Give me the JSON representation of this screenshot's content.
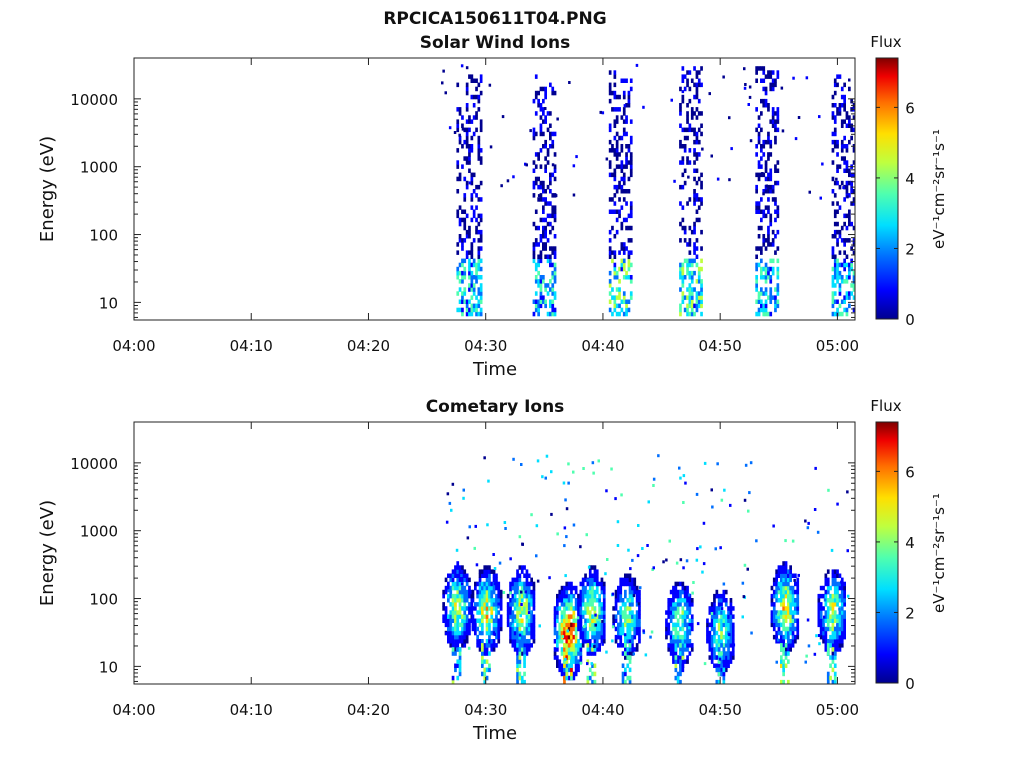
{
  "figure": {
    "title": "RPCICA150611T04.PNG"
  },
  "colormap": [
    "#00008f",
    "#0000ff",
    "#006fff",
    "#00dfff",
    "#4fffaf",
    "#bfff3f",
    "#ffdf00",
    "#ff6f00",
    "#ef0000",
    "#7f0000"
  ],
  "chart_data": [
    {
      "type": "heatmap",
      "title": "Solar Wind Ions",
      "xlabel": "Time",
      "ylabel": "Energy (eV)",
      "x_ticks": [
        "04:00",
        "04:10",
        "04:20",
        "04:30",
        "04:40",
        "04:50",
        "05:00"
      ],
      "x_range_minutes": [
        0,
        61.5
      ],
      "y_scale": "log",
      "y_range": [
        5.5,
        40000
      ],
      "y_ticks": [
        10,
        100,
        1000,
        10000
      ],
      "y_tick_labels": [
        "10",
        "100",
        "1000",
        "10000"
      ],
      "colorbar": {
        "label_top": "Flux",
        "label_side": "eV⁻¹cm⁻²sr⁻¹s⁻¹",
        "range": [
          0,
          7.4
        ],
        "ticks": [
          0,
          2,
          4,
          6
        ],
        "tick_labels": [
          "0",
          "2",
          "4",
          "6"
        ]
      },
      "bursts": [
        {
          "t_start": "04:27:30",
          "t_end": "04:29:30",
          "e_min": 6,
          "e_max": 20000,
          "flux_low_energy": 3,
          "flux_high_energy": 0.6
        },
        {
          "t_start": "04:34:00",
          "t_end": "04:36:00",
          "e_min": 6,
          "e_max": 20000,
          "flux_low_energy": 3,
          "flux_high_energy": 0.6
        },
        {
          "t_start": "04:40:30",
          "t_end": "04:42:30",
          "e_min": 6,
          "e_max": 30000,
          "flux_low_energy": 3.5,
          "flux_high_energy": 0.6
        },
        {
          "t_start": "04:46:30",
          "t_end": "04:48:30",
          "e_min": 6,
          "e_max": 30000,
          "flux_low_energy": 3.5,
          "flux_high_energy": 0.6
        },
        {
          "t_start": "04:53:00",
          "t_end": "04:55:00",
          "e_min": 6,
          "e_max": 30000,
          "flux_low_energy": 3,
          "flux_high_energy": 0.6
        },
        {
          "t_start": "04:59:30",
          "t_end": "05:01:30",
          "e_min": 6,
          "e_max": 20000,
          "flux_low_energy": 3,
          "flux_high_energy": 0.6
        }
      ]
    },
    {
      "type": "heatmap",
      "title": "Cometary Ions",
      "xlabel": "Time",
      "ylabel": "Energy (eV)",
      "x_ticks": [
        "04:00",
        "04:10",
        "04:20",
        "04:30",
        "04:40",
        "04:50",
        "05:00"
      ],
      "x_range_minutes": [
        0,
        61.5
      ],
      "y_scale": "log",
      "y_range": [
        5.5,
        40000
      ],
      "y_ticks": [
        10,
        100,
        1000,
        10000
      ],
      "y_tick_labels": [
        "10",
        "100",
        "1000",
        "10000"
      ],
      "colorbar": {
        "label_top": "Flux",
        "label_side": "eV⁻¹cm⁻²sr⁻¹s⁻¹",
        "range": [
          0,
          7.4
        ],
        "ticks": [
          0,
          2,
          4,
          6
        ],
        "tick_labels": [
          "0",
          "2",
          "4",
          "6"
        ]
      },
      "bursts": [
        {
          "t_center": "04:27:30",
          "e_center": 70,
          "peak_flux": 4.5
        },
        {
          "t_center": "04:30:00",
          "e_center": 60,
          "peak_flux": 5.0
        },
        {
          "t_center": "04:33:00",
          "e_center": 60,
          "peak_flux": 4.8
        },
        {
          "t_center": "04:37:00",
          "e_center": 30,
          "peak_flux": 7.2
        },
        {
          "t_center": "04:39:00",
          "e_center": 60,
          "peak_flux": 4.8
        },
        {
          "t_center": "04:42:00",
          "e_center": 50,
          "peak_flux": 4.0
        },
        {
          "t_center": "04:46:30",
          "e_center": 40,
          "peak_flux": 4.2
        },
        {
          "t_center": "04:50:00",
          "e_center": 30,
          "peak_flux": 4.0
        },
        {
          "t_center": "04:55:30",
          "e_center": 70,
          "peak_flux": 5.0
        },
        {
          "t_center": "04:59:30",
          "e_center": 60,
          "peak_flux": 4.5
        }
      ]
    }
  ]
}
